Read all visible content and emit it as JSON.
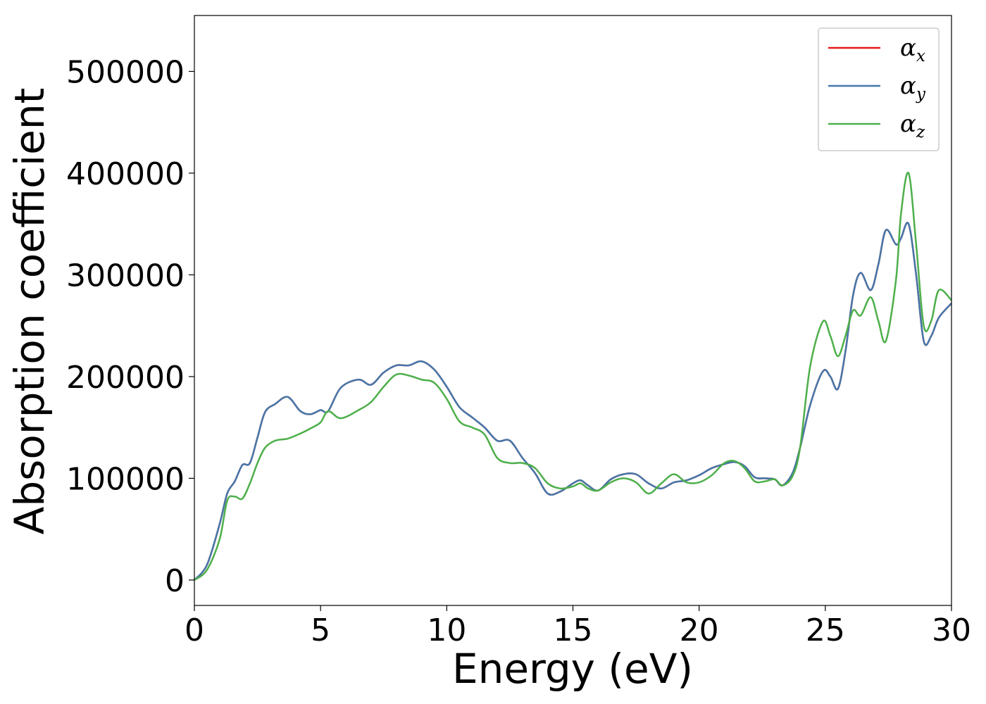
{
  "chart_data": {
    "type": "line",
    "xlabel": "Energy (eV)",
    "ylabel": "Absorption coefficient",
    "xlim": [
      0,
      30
    ],
    "ylim": [
      -25000,
      555000
    ],
    "xticks": [
      0,
      5,
      10,
      15,
      20,
      25,
      30
    ],
    "yticks": [
      0,
      100000,
      200000,
      300000,
      400000,
      500000
    ],
    "xtick_labels": [
      "0",
      "5",
      "10",
      "15",
      "20",
      "25",
      "30"
    ],
    "ytick_labels": [
      "0",
      "100000",
      "200000",
      "300000",
      "400000",
      "500000"
    ],
    "grid": false,
    "legend_position": "top-right",
    "x": [
      0,
      0.5,
      1.0,
      1.3,
      1.6,
      1.9,
      2.2,
      2.5,
      2.8,
      3.2,
      3.7,
      4.2,
      4.6,
      5.0,
      5.3,
      5.8,
      6.5,
      7.0,
      7.5,
      8.0,
      8.5,
      9.0,
      9.5,
      10.0,
      10.5,
      11.0,
      11.5,
      12.0,
      12.5,
      13.0,
      13.5,
      14.0,
      14.5,
      15.0,
      15.3,
      15.6,
      16.0,
      16.5,
      17.0,
      17.5,
      18.0,
      18.5,
      19.0,
      19.5,
      20.0,
      20.5,
      21.0,
      21.4,
      21.8,
      22.2,
      22.6,
      23.0,
      23.3,
      23.7,
      24.0,
      24.4,
      24.9,
      25.2,
      25.5,
      25.8,
      26.1,
      26.4,
      26.8,
      27.1,
      27.4,
      27.8,
      28.0,
      28.3,
      28.6,
      28.9,
      29.2,
      29.5,
      30.0
    ],
    "series": [
      {
        "name": "α_x",
        "color": "#e41a1c",
        "values": [
          0,
          15000,
          55000,
          85000,
          97000,
          113000,
          115000,
          140000,
          165000,
          173000,
          180000,
          166000,
          163000,
          167000,
          166000,
          189000,
          197000,
          192000,
          204000,
          211000,
          211000,
          215000,
          207000,
          190000,
          170000,
          160000,
          150000,
          137000,
          137000,
          120000,
          105000,
          85000,
          87000,
          95000,
          98000,
          93000,
          88000,
          99000,
          104000,
          104000,
          95000,
          90000,
          96000,
          98000,
          103000,
          110000,
          114000,
          116000,
          112000,
          101000,
          100000,
          99000,
          93000,
          105000,
          130000,
          172000,
          205000,
          200000,
          188000,
          225000,
          280000,
          302000,
          285000,
          310000,
          344000,
          330000,
          336000,
          350000,
          300000,
          235000,
          240000,
          258000,
          272000
        ]
      },
      {
        "name": "α_y",
        "color": "#4477aa",
        "values": [
          0,
          15000,
          55000,
          85000,
          97000,
          113000,
          115000,
          140000,
          165000,
          173000,
          180000,
          166000,
          163000,
          167000,
          166000,
          189000,
          197000,
          192000,
          204000,
          211000,
          211000,
          215000,
          207000,
          190000,
          170000,
          160000,
          150000,
          137000,
          137000,
          120000,
          105000,
          85000,
          87000,
          95000,
          98000,
          93000,
          88000,
          99000,
          104000,
          104000,
          95000,
          90000,
          96000,
          98000,
          103000,
          110000,
          114000,
          116000,
          112000,
          101000,
          100000,
          99000,
          93000,
          105000,
          130000,
          172000,
          205000,
          200000,
          188000,
          225000,
          280000,
          302000,
          285000,
          310000,
          344000,
          330000,
          336000,
          350000,
          300000,
          235000,
          240000,
          258000,
          272000
        ]
      },
      {
        "name": "α_z",
        "color": "#4daf4a",
        "values": [
          0,
          10000,
          40000,
          78000,
          82000,
          80000,
          95000,
          115000,
          130000,
          137000,
          139000,
          144000,
          149000,
          155000,
          166000,
          159000,
          167000,
          175000,
          190000,
          202000,
          201000,
          197000,
          194000,
          178000,
          156000,
          150000,
          143000,
          120000,
          115000,
          115000,
          110000,
          95000,
          90000,
          92000,
          95000,
          90000,
          88000,
          96000,
          100000,
          96000,
          85000,
          95000,
          104000,
          96000,
          96000,
          103000,
          115000,
          117000,
          110000,
          97000,
          97000,
          99000,
          93000,
          102000,
          130000,
          210000,
          254000,
          240000,
          220000,
          240000,
          265000,
          260000,
          278000,
          255000,
          235000,
          295000,
          360000,
          400000,
          330000,
          250000,
          255000,
          285000,
          275000
        ]
      }
    ]
  }
}
